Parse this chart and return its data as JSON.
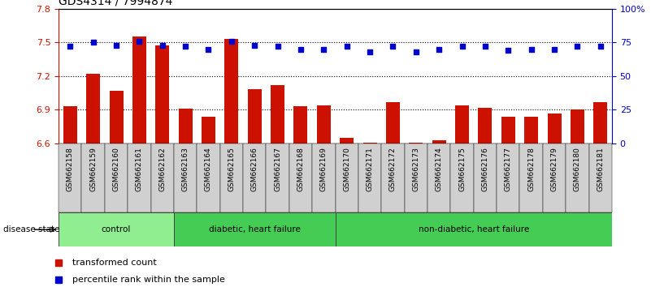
{
  "title": "GDS4314 / 7994874",
  "samples": [
    "GSM662158",
    "GSM662159",
    "GSM662160",
    "GSM662161",
    "GSM662162",
    "GSM662163",
    "GSM662164",
    "GSM662165",
    "GSM662166",
    "GSM662167",
    "GSM662168",
    "GSM662169",
    "GSM662170",
    "GSM662171",
    "GSM662172",
    "GSM662173",
    "GSM662174",
    "GSM662175",
    "GSM662176",
    "GSM662177",
    "GSM662178",
    "GSM662179",
    "GSM662180",
    "GSM662181"
  ],
  "bar_values": [
    6.93,
    7.22,
    7.07,
    7.55,
    7.47,
    6.91,
    6.84,
    7.53,
    7.08,
    7.12,
    6.93,
    6.94,
    6.65,
    6.61,
    6.97,
    6.61,
    6.63,
    6.94,
    6.92,
    6.84,
    6.84,
    6.87,
    6.9,
    6.97
  ],
  "dot_values": [
    72,
    75,
    73,
    76,
    73,
    72,
    70,
    76,
    73,
    72,
    70,
    70,
    72,
    68,
    72,
    68,
    70,
    72,
    72,
    69,
    70,
    70,
    72,
    72
  ],
  "group_labels": [
    "control",
    "diabetic, heart failure",
    "non-diabetic, heart failure"
  ],
  "group_starts": [
    0,
    5,
    12
  ],
  "group_ends": [
    5,
    12,
    24
  ],
  "group_colors": [
    "#90EE90",
    "#44CC55",
    "#44CC55"
  ],
  "ylim_left": [
    6.6,
    7.8
  ],
  "ylim_right": [
    0,
    100
  ],
  "yticks_left": [
    6.6,
    6.9,
    7.2,
    7.5,
    7.8
  ],
  "yticks_right": [
    0,
    25,
    50,
    75,
    100
  ],
  "ytick_labels_right": [
    "0",
    "25",
    "50",
    "75",
    "100%"
  ],
  "grid_lines": [
    6.9,
    7.2,
    7.5
  ],
  "bar_color": "#CC1100",
  "dot_color": "#0000CC",
  "title_fontsize": 10,
  "tick_fontsize": 8,
  "label_fontsize": 7
}
